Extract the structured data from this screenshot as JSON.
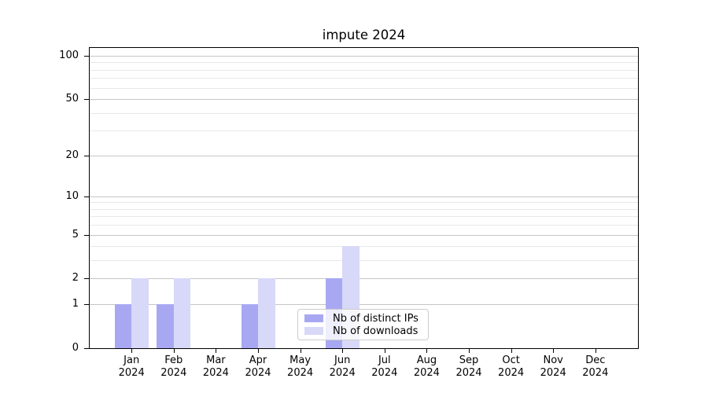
{
  "chart_data": {
    "type": "bar",
    "title": "impute 2024",
    "categories": [
      "Jan",
      "Feb",
      "Mar",
      "Apr",
      "May",
      "Jun",
      "Jul",
      "Aug",
      "Sep",
      "Oct",
      "Nov",
      "Dec"
    ],
    "x_sublabel": "2024",
    "series": [
      {
        "name": "Nb of distinct IPs",
        "color": "#a8a8f2",
        "values": [
          1,
          1,
          0,
          1,
          0,
          2,
          0,
          0,
          0,
          0,
          0,
          0
        ]
      },
      {
        "name": "Nb of downloads",
        "color": "#d8d8f8",
        "values": [
          2,
          2,
          0,
          2,
          0,
          4,
          0,
          0,
          0,
          0,
          0,
          0
        ]
      }
    ],
    "yscale": "log1p",
    "yticks": [
      0,
      1,
      2,
      5,
      10,
      20,
      50,
      100
    ],
    "yticks_minor": [
      3,
      4,
      6,
      7,
      8,
      9,
      30,
      40,
      60,
      70,
      80,
      90
    ],
    "ylim": [
      0,
      113
    ],
    "xlabel": "",
    "ylabel": "",
    "grid": "horizontal",
    "legend_position": "lower-center",
    "colors": {
      "grid_major": "#c6c6c6",
      "grid_minor": "#e8e8e8",
      "axis": "#000000",
      "background": "#ffffff",
      "text": "#000000"
    }
  }
}
